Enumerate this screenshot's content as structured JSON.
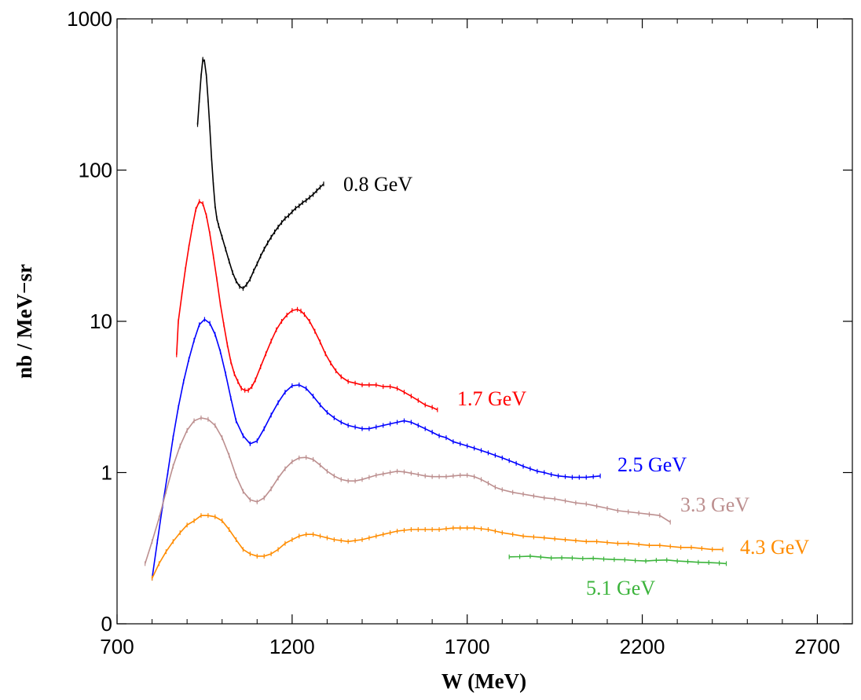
{
  "chart_data": {
    "type": "line",
    "xlabel": "W (MeV)",
    "ylabel": "nb / MeV−sr",
    "xlim": [
      700,
      2800
    ],
    "ylim": [
      0,
      1000
    ],
    "x_tick_labels": [
      "700",
      "1200",
      "1700",
      "2200",
      "2700"
    ],
    "y_tick_labels": [
      "0",
      "1",
      "10",
      "100",
      "1000"
    ],
    "grid": false,
    "legend": "none",
    "series": [
      {
        "name": "0.8 GeV",
        "color": "#000000",
        "x": [
          930,
          935,
          940,
          945,
          950,
          955,
          960,
          965,
          970,
          975,
          980,
          985,
          990,
          1000,
          1010,
          1020,
          1030,
          1040,
          1050,
          1060,
          1070,
          1080,
          1090,
          1100,
          1110,
          1120,
          1130,
          1140,
          1150,
          1160,
          1170,
          1180,
          1190,
          1200,
          1210,
          1220,
          1230,
          1240,
          1250,
          1260,
          1270,
          1280,
          1290
        ],
        "y": [
          200,
          290,
          420,
          540,
          520,
          420,
          290,
          190,
          120,
          80,
          58,
          48,
          43,
          36,
          30,
          25,
          21,
          18.5,
          17,
          16.5,
          17.5,
          19,
          21.5,
          24,
          27,
          30,
          33,
          36,
          39,
          42,
          45,
          48,
          50,
          53,
          56,
          58,
          61,
          63,
          66,
          69,
          73,
          77,
          81
        ]
      },
      {
        "name": "1.7 GeV",
        "color": "#ff0000",
        "x": [
          870,
          875,
          885,
          895,
          905,
          915,
          925,
          935,
          945,
          955,
          965,
          975,
          985,
          995,
          1005,
          1015,
          1025,
          1035,
          1045,
          1055,
          1065,
          1075,
          1085,
          1095,
          1110,
          1125,
          1140,
          1155,
          1170,
          1185,
          1200,
          1215,
          1225,
          1235,
          1250,
          1265,
          1280,
          1295,
          1310,
          1325,
          1340,
          1360,
          1380,
          1400,
          1420,
          1440,
          1460,
          1480,
          1500,
          1520,
          1540,
          1560,
          1580,
          1600,
          1615
        ],
        "y": [
          6,
          10,
          15,
          22,
          31,
          42,
          55,
          62,
          60,
          50,
          38,
          27,
          19,
          13,
          9.5,
          7,
          5.4,
          4.5,
          4,
          3.6,
          3.5,
          3.5,
          3.7,
          4.1,
          5,
          6.1,
          7.4,
          8.8,
          10,
          11,
          11.8,
          12,
          11.7,
          11.1,
          10,
          8.6,
          7.3,
          6.1,
          5.3,
          4.7,
          4.3,
          4,
          3.9,
          3.8,
          3.8,
          3.8,
          3.7,
          3.7,
          3.6,
          3.4,
          3.2,
          3,
          2.8,
          2.7,
          2.6
        ]
      },
      {
        "name": "2.5 GeV",
        "color": "#0000ff",
        "x": [
          800,
          815,
          830,
          845,
          860,
          875,
          890,
          905,
          920,
          935,
          950,
          965,
          980,
          995,
          1010,
          1025,
          1040,
          1060,
          1080,
          1100,
          1120,
          1140,
          1160,
          1180,
          1200,
          1220,
          1240,
          1260,
          1280,
          1300,
          1320,
          1340,
          1360,
          1380,
          1400,
          1420,
          1440,
          1460,
          1480,
          1500,
          1520,
          1540,
          1560,
          1580,
          1600,
          1620,
          1640,
          1660,
          1680,
          1700,
          1720,
          1740,
          1760,
          1780,
          1800,
          1820,
          1840,
          1860,
          1880,
          1900,
          1920,
          1940,
          1960,
          1980,
          2000,
          2020,
          2040,
          2060,
          2080
        ],
        "y": [
          0.2,
          0.35,
          0.6,
          1,
          1.7,
          2.7,
          4,
          5.6,
          7.5,
          9.5,
          10.3,
          9.7,
          8.2,
          6.3,
          4.5,
          3.1,
          2.2,
          1.75,
          1.55,
          1.62,
          1.95,
          2.4,
          2.9,
          3.4,
          3.75,
          3.8,
          3.6,
          3.2,
          2.8,
          2.5,
          2.3,
          2.15,
          2.05,
          2,
          1.95,
          1.95,
          2,
          2.05,
          2.1,
          2.15,
          2.2,
          2.15,
          2.05,
          1.95,
          1.85,
          1.75,
          1.7,
          1.6,
          1.55,
          1.5,
          1.45,
          1.4,
          1.35,
          1.3,
          1.25,
          1.2,
          1.15,
          1.1,
          1.06,
          1.02,
          1,
          0.97,
          0.95,
          0.94,
          0.93,
          0.93,
          0.93,
          0.94,
          0.95
        ]
      },
      {
        "name": "3.3 GeV",
        "color": "#bc8f8f",
        "x": [
          780,
          800,
          820,
          840,
          860,
          880,
          900,
          920,
          940,
          960,
          980,
          1000,
          1020,
          1040,
          1060,
          1080,
          1100,
          1120,
          1140,
          1160,
          1180,
          1200,
          1220,
          1240,
          1260,
          1280,
          1300,
          1320,
          1340,
          1360,
          1380,
          1400,
          1420,
          1440,
          1460,
          1480,
          1500,
          1520,
          1540,
          1560,
          1580,
          1600,
          1620,
          1640,
          1660,
          1680,
          1700,
          1720,
          1740,
          1760,
          1780,
          1800,
          1830,
          1860,
          1890,
          1920,
          1950,
          1980,
          2010,
          2040,
          2070,
          2100,
          2130,
          2160,
          2190,
          2220,
          2250,
          2280
        ],
        "y": [
          0.25,
          0.35,
          0.5,
          0.75,
          1.1,
          1.5,
          1.9,
          2.2,
          2.3,
          2.25,
          2.05,
          1.7,
          1.3,
          0.95,
          0.75,
          0.66,
          0.64,
          0.68,
          0.78,
          0.92,
          1.06,
          1.18,
          1.25,
          1.26,
          1.22,
          1.12,
          1.02,
          0.95,
          0.9,
          0.88,
          0.88,
          0.9,
          0.93,
          0.96,
          0.98,
          1,
          1.02,
          1.01,
          0.99,
          0.97,
          0.95,
          0.94,
          0.94,
          0.94,
          0.95,
          0.96,
          0.96,
          0.94,
          0.9,
          0.85,
          0.8,
          0.77,
          0.74,
          0.72,
          0.7,
          0.68,
          0.67,
          0.65,
          0.63,
          0.62,
          0.6,
          0.58,
          0.56,
          0.55,
          0.54,
          0.53,
          0.52,
          0.47
        ]
      },
      {
        "name": "4.3 GeV",
        "color": "#ff8c00",
        "x": [
          800,
          820,
          840,
          860,
          880,
          900,
          920,
          940,
          960,
          980,
          1000,
          1020,
          1040,
          1060,
          1080,
          1100,
          1120,
          1140,
          1160,
          1180,
          1200,
          1220,
          1240,
          1260,
          1280,
          1300,
          1320,
          1340,
          1360,
          1380,
          1400,
          1420,
          1440,
          1460,
          1480,
          1500,
          1520,
          1540,
          1560,
          1580,
          1600,
          1620,
          1640,
          1660,
          1680,
          1700,
          1720,
          1740,
          1760,
          1780,
          1800,
          1830,
          1860,
          1890,
          1920,
          1950,
          1980,
          2010,
          2040,
          2070,
          2100,
          2130,
          2160,
          2190,
          2220,
          2250,
          2280,
          2310,
          2340,
          2370,
          2400,
          2430
        ],
        "y": [
          0.2,
          0.25,
          0.3,
          0.35,
          0.4,
          0.45,
          0.48,
          0.52,
          0.52,
          0.51,
          0.48,
          0.42,
          0.36,
          0.31,
          0.29,
          0.28,
          0.28,
          0.29,
          0.31,
          0.34,
          0.36,
          0.38,
          0.39,
          0.39,
          0.38,
          0.37,
          0.36,
          0.355,
          0.35,
          0.355,
          0.36,
          0.37,
          0.38,
          0.39,
          0.4,
          0.41,
          0.415,
          0.42,
          0.42,
          0.42,
          0.42,
          0.42,
          0.425,
          0.43,
          0.43,
          0.43,
          0.43,
          0.425,
          0.42,
          0.41,
          0.4,
          0.39,
          0.38,
          0.375,
          0.37,
          0.365,
          0.36,
          0.355,
          0.35,
          0.35,
          0.345,
          0.34,
          0.34,
          0.335,
          0.33,
          0.33,
          0.325,
          0.32,
          0.32,
          0.315,
          0.31,
          0.31
        ]
      },
      {
        "name": "5.1 GeV",
        "color": "#3cb43c",
        "x": [
          1820,
          1850,
          1880,
          1910,
          1940,
          1970,
          2000,
          2030,
          2060,
          2090,
          2120,
          2150,
          2180,
          2210,
          2240,
          2270,
          2300,
          2330,
          2360,
          2390,
          2420,
          2440
        ],
        "y": [
          0.277,
          0.278,
          0.28,
          0.276,
          0.272,
          0.273,
          0.272,
          0.27,
          0.271,
          0.268,
          0.266,
          0.265,
          0.262,
          0.26,
          0.263,
          0.264,
          0.26,
          0.258,
          0.255,
          0.254,
          0.252,
          0.25
        ]
      }
    ]
  }
}
